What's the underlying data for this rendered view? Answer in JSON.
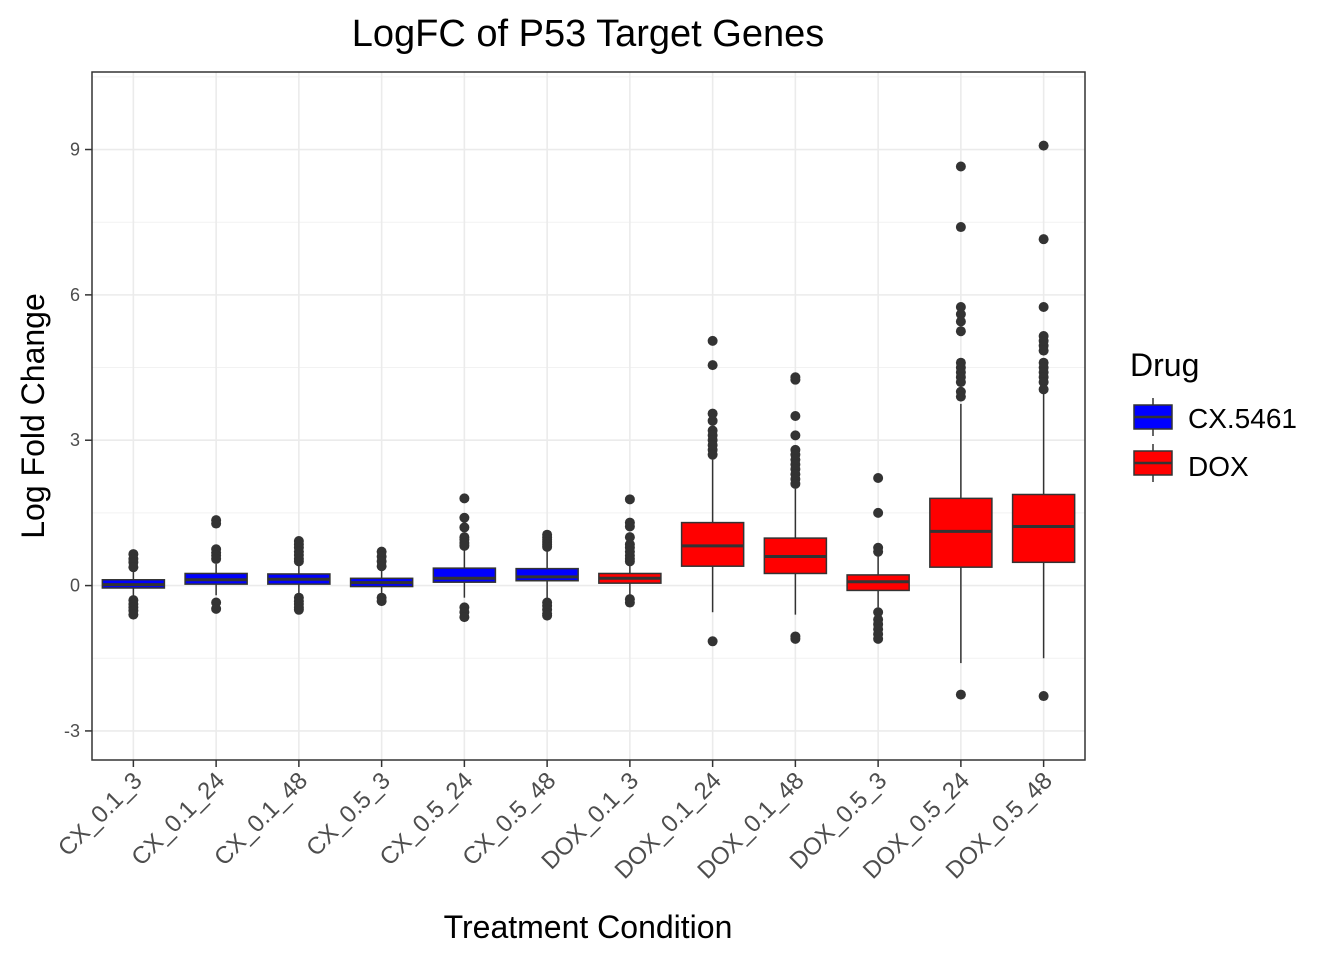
{
  "chart_data": {
    "type": "box",
    "title": "LogFC of P53 Target Genes",
    "xlabel": "Treatment Condition",
    "ylabel": "Log Fold Change",
    "ylim": [
      -3.6,
      10.6
    ],
    "yticks": [
      -3,
      0,
      3,
      6,
      9
    ],
    "grid": true,
    "legend": {
      "title": "Drug",
      "position": "right",
      "entries": [
        {
          "label": "CX.5461",
          "color": "#0000ff"
        },
        {
          "label": "DOX",
          "color": "#ff0000"
        }
      ]
    },
    "categories": [
      "CX_0.1_3",
      "CX_0.1_24",
      "CX_0.1_48",
      "CX_0.5_3",
      "CX_0.5_24",
      "CX_0.5_48",
      "DOX_0.1_3",
      "DOX_0.1_24",
      "DOX_0.1_48",
      "DOX_0.5_3",
      "DOX_0.5_24",
      "DOX_0.5_48"
    ],
    "boxes": [
      {
        "drug": "CX.5461",
        "whisker_low": -0.25,
        "q1": -0.05,
        "median": 0.02,
        "q3": 0.12,
        "whisker_high": 0.3,
        "outliers": [
          0.65,
          0.55,
          0.48,
          0.38,
          -0.3,
          -0.38,
          -0.45,
          -0.52,
          -0.6
        ]
      },
      {
        "drug": "CX.5461",
        "whisker_low": -0.2,
        "q1": 0.03,
        "median": 0.12,
        "q3": 0.25,
        "whisker_high": 0.45,
        "outliers": [
          1.35,
          1.28,
          0.75,
          0.68,
          0.62,
          0.55,
          -0.35,
          -0.48
        ]
      },
      {
        "drug": "CX.5461",
        "whisker_low": -0.2,
        "q1": 0.03,
        "median": 0.13,
        "q3": 0.24,
        "whisker_high": 0.45,
        "outliers": [
          0.92,
          0.85,
          0.78,
          0.7,
          0.63,
          0.55,
          0.5,
          -0.25,
          -0.32,
          -0.38,
          -0.45,
          -0.5
        ]
      },
      {
        "drug": "CX.5461",
        "whisker_low": -0.2,
        "q1": -0.02,
        "median": 0.06,
        "q3": 0.15,
        "whisker_high": 0.35,
        "outliers": [
          0.7,
          0.6,
          0.5,
          0.4,
          -0.25,
          -0.32
        ]
      },
      {
        "drug": "CX.5461",
        "whisker_low": -0.25,
        "q1": 0.07,
        "median": 0.15,
        "q3": 0.36,
        "whisker_high": 0.8,
        "outliers": [
          1.8,
          1.4,
          1.2,
          1.0,
          0.95,
          0.88,
          0.82,
          -0.45,
          -0.55,
          -0.65
        ]
      },
      {
        "drug": "CX.5461",
        "whisker_low": -0.3,
        "q1": 0.1,
        "median": 0.18,
        "q3": 0.35,
        "whisker_high": 0.75,
        "outliers": [
          1.05,
          1.0,
          0.95,
          0.9,
          0.85,
          0.8,
          -0.35,
          -0.42,
          -0.5,
          -0.58,
          -0.62
        ]
      },
      {
        "drug": "DOX",
        "whisker_low": -0.2,
        "q1": 0.05,
        "median": 0.15,
        "q3": 0.25,
        "whisker_high": 0.45,
        "outliers": [
          1.78,
          1.3,
          1.22,
          1.0,
          0.85,
          0.78,
          0.7,
          0.62,
          0.55,
          0.5,
          -0.28,
          -0.35
        ]
      },
      {
        "drug": "DOX",
        "whisker_low": -0.55,
        "q1": 0.4,
        "median": 0.82,
        "q3": 1.3,
        "whisker_high": 2.6,
        "outliers": [
          5.05,
          4.55,
          3.55,
          3.4,
          3.2,
          3.1,
          3.0,
          2.9,
          2.8,
          2.7,
          -1.15
        ]
      },
      {
        "drug": "DOX",
        "whisker_low": -0.6,
        "q1": 0.25,
        "median": 0.6,
        "q3": 0.98,
        "whisker_high": 2.0,
        "outliers": [
          4.3,
          4.25,
          3.5,
          3.1,
          2.8,
          2.7,
          2.6,
          2.5,
          2.4,
          2.3,
          2.2,
          2.1,
          -1.05,
          -1.1
        ]
      },
      {
        "drug": "DOX",
        "whisker_low": -0.45,
        "q1": -0.1,
        "median": 0.08,
        "q3": 0.22,
        "whisker_high": 0.6,
        "outliers": [
          2.22,
          1.5,
          0.78,
          0.7,
          -0.55,
          -0.7,
          -0.8,
          -0.9,
          -1.0,
          -1.1
        ]
      },
      {
        "drug": "DOX",
        "whisker_low": -1.6,
        "q1": 0.38,
        "median": 1.12,
        "q3": 1.8,
        "whisker_high": 3.75,
        "outliers": [
          8.65,
          7.4,
          5.75,
          5.6,
          5.45,
          5.25,
          4.6,
          4.5,
          4.4,
          4.3,
          4.2,
          4.0,
          3.9,
          -2.25
        ]
      },
      {
        "drug": "DOX",
        "whisker_low": -1.5,
        "q1": 0.48,
        "median": 1.22,
        "q3": 1.88,
        "whisker_high": 4.0,
        "outliers": [
          9.08,
          7.15,
          5.75,
          5.15,
          5.05,
          4.95,
          4.85,
          4.6,
          4.5,
          4.4,
          4.3,
          4.2,
          4.05,
          -2.28
        ]
      }
    ]
  }
}
